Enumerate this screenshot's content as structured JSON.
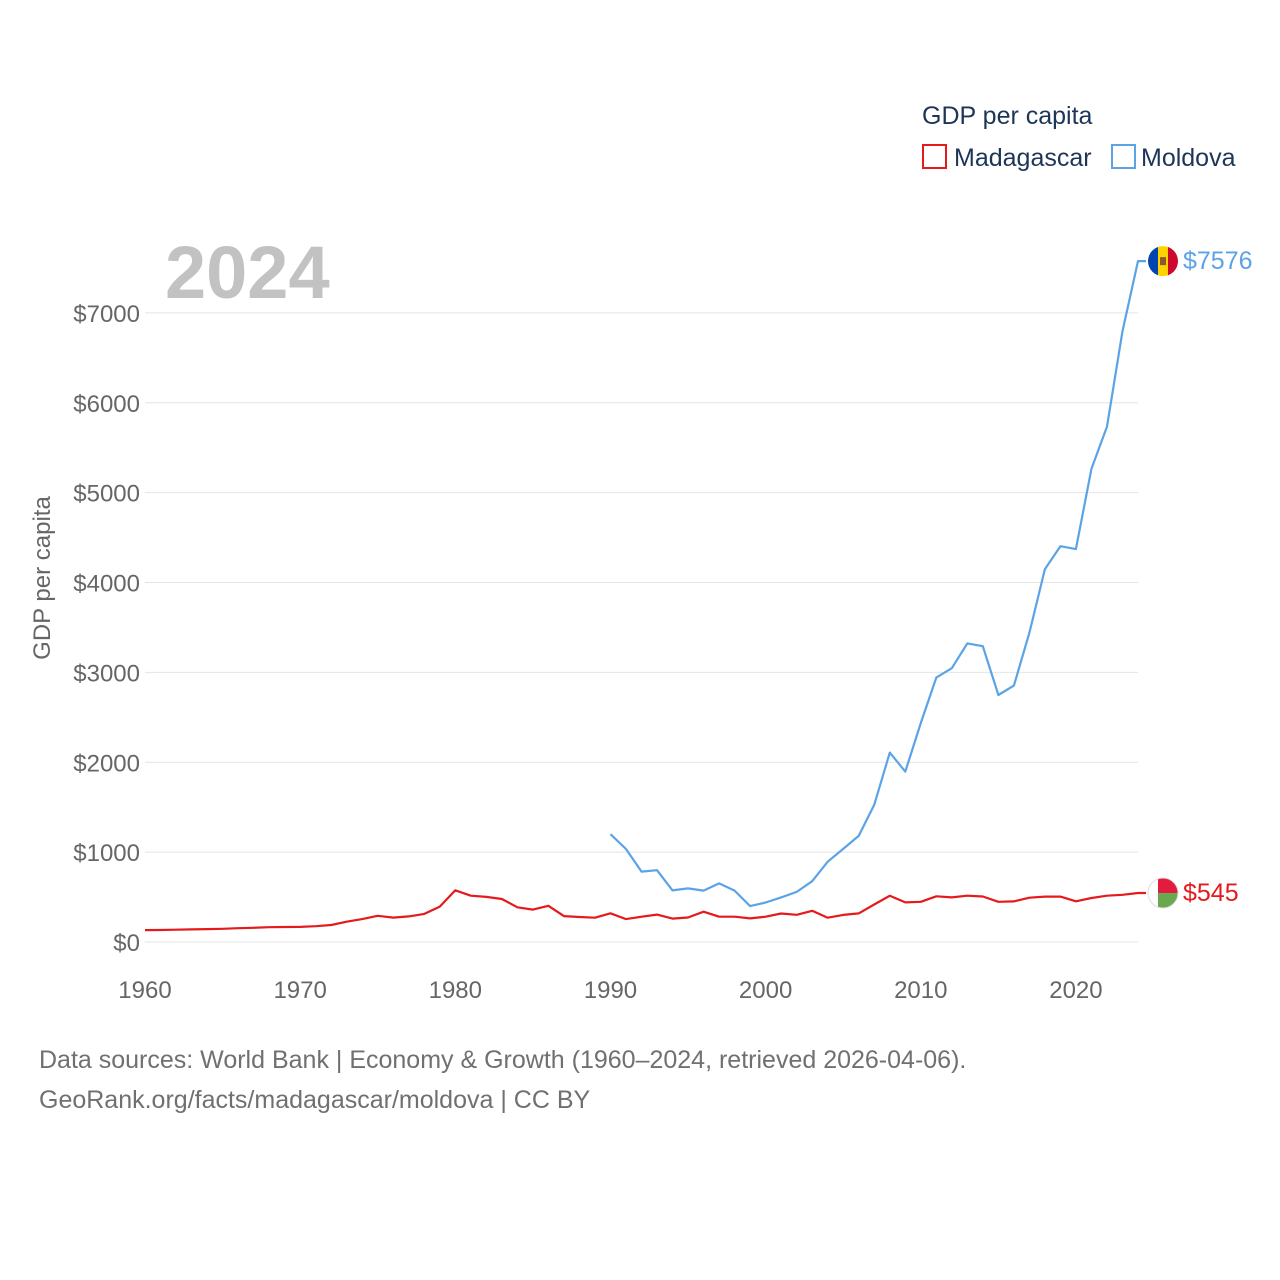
{
  "chart_data": {
    "type": "line",
    "year_label": "2024",
    "ylabel": "GDP per capita",
    "xlabel": "",
    "xlim": [
      1960,
      2024
    ],
    "ylim": [
      0,
      7700
    ],
    "x_ticks": [
      1960,
      1970,
      1980,
      1990,
      2000,
      2010,
      2020
    ],
    "y_ticks": [
      0,
      1000,
      2000,
      3000,
      4000,
      5000,
      6000,
      7000
    ],
    "y_tick_labels": [
      "$0",
      "$1000",
      "$2000",
      "$3000",
      "$4000",
      "$5000",
      "$6000",
      "$7000"
    ],
    "legend": {
      "title": "GDP per capita",
      "placement": "top-right",
      "items": [
        "Madagascar",
        "Moldova"
      ]
    },
    "series": [
      {
        "name": "Madagascar",
        "color": "#e41a1c",
        "end_label": "$545",
        "x": [
          1960,
          1961,
          1962,
          1963,
          1964,
          1965,
          1966,
          1967,
          1968,
          1969,
          1970,
          1971,
          1972,
          1973,
          1974,
          1975,
          1976,
          1977,
          1978,
          1979,
          1980,
          1981,
          1982,
          1983,
          1984,
          1985,
          1986,
          1987,
          1988,
          1989,
          1990,
          1991,
          1992,
          1993,
          1994,
          1995,
          1996,
          1997,
          1998,
          1999,
          2000,
          2001,
          2002,
          2003,
          2004,
          2005,
          2006,
          2007,
          2008,
          2009,
          2010,
          2011,
          2012,
          2013,
          2014,
          2015,
          2016,
          2017,
          2018,
          2019,
          2020,
          2021,
          2022,
          2023,
          2024
        ],
        "values": [
          132,
          134,
          137,
          140,
          143,
          147,
          153,
          158,
          165,
          167,
          168,
          176,
          189,
          226,
          255,
          291,
          272,
          285,
          313,
          394,
          575,
          515,
          502,
          478,
          386,
          361,
          403,
          288,
          278,
          270,
          319,
          255,
          282,
          305,
          260,
          273,
          337,
          282,
          282,
          263,
          282,
          317,
          303,
          347,
          270,
          302,
          318,
          417,
          515,
          441,
          447,
          508,
          496,
          515,
          506,
          447,
          452,
          493,
          505,
          505,
          453,
          490,
          515,
          525,
          545
        ]
      },
      {
        "name": "Moldova",
        "color": "#5ba3e6",
        "end_label": "$7576",
        "x": [
          1990,
          1991,
          1992,
          1993,
          1994,
          1995,
          1996,
          1997,
          1998,
          1999,
          2000,
          2001,
          2002,
          2003,
          2004,
          2005,
          2006,
          2007,
          2008,
          2009,
          2010,
          2011,
          2012,
          2013,
          2014,
          2015,
          2016,
          2017,
          2018,
          2019,
          2020,
          2021,
          2022,
          2023,
          2024
        ],
        "values": [
          1199,
          1035,
          783,
          799,
          574,
          596,
          572,
          652,
          572,
          400,
          440,
          496,
          558,
          676,
          894,
          1036,
          1181,
          1526,
          2108,
          1896,
          2437,
          2942,
          3047,
          3323,
          3291,
          2748,
          2853,
          3442,
          4149,
          4404,
          4372,
          5268,
          5735,
          6798,
          7576
        ]
      }
    ]
  },
  "footer": {
    "line1": "Data sources: World Bank | Economy & Growth (1960–2024, retrieved 2026-04-06).",
    "line2": "GeoRank.org/facts/madagascar/moldova | CC BY"
  }
}
